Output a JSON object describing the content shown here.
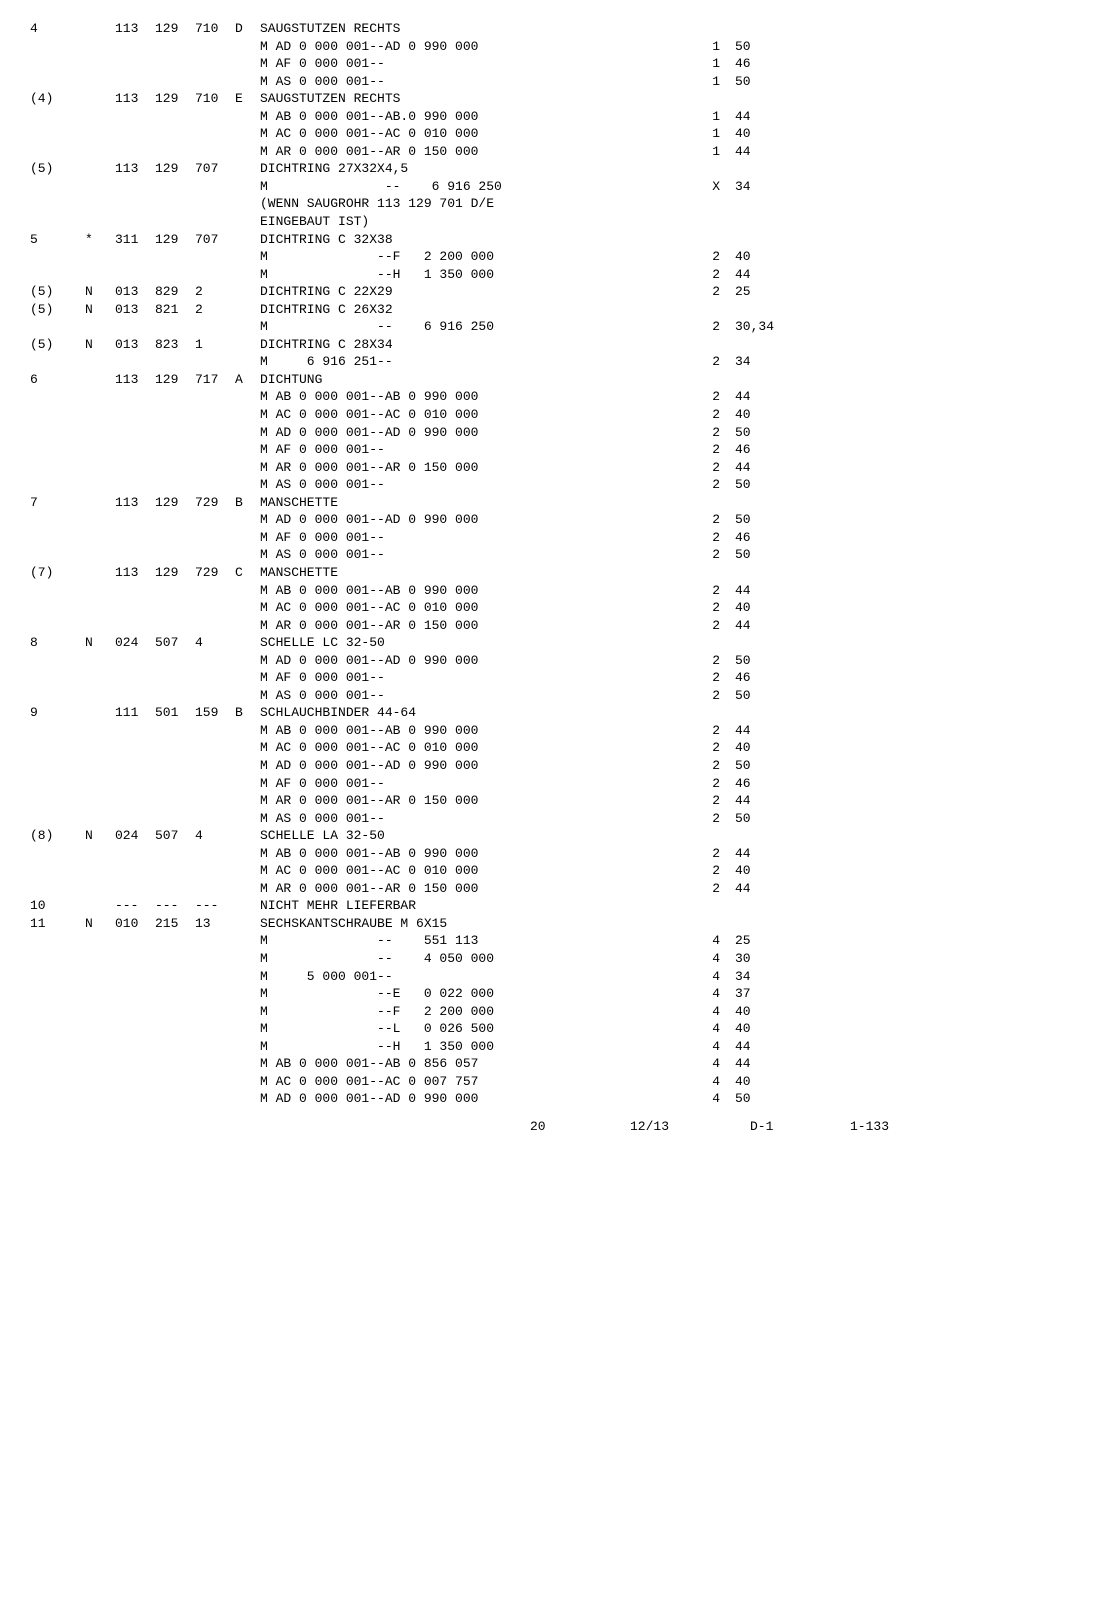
{
  "rows": [
    {
      "idx": "4",
      "mark": "",
      "p1": "113",
      "p2": "129",
      "p3": "710",
      "p4": "D",
      "desc": "SAUGSTUTZEN RECHTS",
      "q": "",
      "v": ""
    },
    {
      "idx": "",
      "mark": "",
      "p1": "",
      "p2": "",
      "p3": "",
      "p4": "",
      "desc": "M AD 0 000 001--AD 0 990 000",
      "q": "1",
      "v": "50"
    },
    {
      "idx": "",
      "mark": "",
      "p1": "",
      "p2": "",
      "p3": "",
      "p4": "",
      "desc": "M AF 0 000 001--",
      "q": "1",
      "v": "46"
    },
    {
      "idx": "",
      "mark": "",
      "p1": "",
      "p2": "",
      "p3": "",
      "p4": "",
      "desc": "M AS 0 000 001--",
      "q": "1",
      "v": "50"
    },
    {
      "idx": "(4)",
      "mark": "",
      "p1": "113",
      "p2": "129",
      "p3": "710",
      "p4": "E",
      "desc": "SAUGSTUTZEN RECHTS",
      "q": "",
      "v": ""
    },
    {
      "idx": "",
      "mark": "",
      "p1": "",
      "p2": "",
      "p3": "",
      "p4": "",
      "desc": "M AB 0 000 001--AB.0 990 000",
      "q": "1",
      "v": "44"
    },
    {
      "idx": "",
      "mark": "",
      "p1": "",
      "p2": "",
      "p3": "",
      "p4": "",
      "desc": "M AC 0 000 001--AC 0 010 000",
      "q": "1",
      "v": "40"
    },
    {
      "idx": "",
      "mark": "",
      "p1": "",
      "p2": "",
      "p3": "",
      "p4": "",
      "desc": "M AR 0 000 001--AR 0 150 000",
      "q": "1",
      "v": "44"
    },
    {
      "idx": "(5)",
      "mark": "",
      "p1": "113",
      "p2": "129",
      "p3": "707",
      "p4": "",
      "desc": "DICHTRING 27X32X4,5",
      "q": "",
      "v": ""
    },
    {
      "idx": "",
      "mark": "",
      "p1": "",
      "p2": "",
      "p3": "",
      "p4": "",
      "desc": "M               --    6 916 250",
      "q": "X",
      "v": "34"
    },
    {
      "idx": "",
      "mark": "",
      "p1": "",
      "p2": "",
      "p3": "",
      "p4": "",
      "desc": "(WENN SAUGROHR 113 129 701 D/E",
      "q": "",
      "v": ""
    },
    {
      "idx": "",
      "mark": "",
      "p1": "",
      "p2": "",
      "p3": "",
      "p4": "",
      "desc": "EINGEBAUT IST)",
      "q": "",
      "v": ""
    },
    {
      "idx": "5",
      "mark": "*",
      "p1": "311",
      "p2": "129",
      "p3": "707",
      "p4": "",
      "desc": "DICHTRING C 32X38",
      "q": "",
      "v": ""
    },
    {
      "idx": "",
      "mark": "",
      "p1": "",
      "p2": "",
      "p3": "",
      "p4": "",
      "desc": "M              --F   2 200 000",
      "q": "2",
      "v": "40"
    },
    {
      "idx": "",
      "mark": "",
      "p1": "",
      "p2": "",
      "p3": "",
      "p4": "",
      "desc": "M              --H   1 350 000",
      "q": "2",
      "v": "44"
    },
    {
      "idx": "(5)",
      "mark": "N",
      "p1": "013",
      "p2": "829",
      "p3": "2",
      "p4": "",
      "desc": "DICHTRING C 22X29",
      "q": "2",
      "v": "25"
    },
    {
      "idx": "(5)",
      "mark": "N",
      "p1": "013",
      "p2": "821",
      "p3": "2",
      "p4": "",
      "desc": "DICHTRING C 26X32",
      "q": "",
      "v": ""
    },
    {
      "idx": "",
      "mark": "",
      "p1": "",
      "p2": "",
      "p3": "",
      "p4": "",
      "desc": "M              --    6 916 250",
      "q": "2",
      "v": "30,34"
    },
    {
      "idx": "(5)",
      "mark": "N",
      "p1": "013",
      "p2": "823",
      "p3": "1",
      "p4": "",
      "desc": "DICHTRING C 28X34",
      "q": "",
      "v": ""
    },
    {
      "idx": "",
      "mark": "",
      "p1": "",
      "p2": "",
      "p3": "",
      "p4": "",
      "desc": "M     6 916 251--",
      "q": "2",
      "v": "34"
    },
    {
      "idx": "6",
      "mark": "",
      "p1": "113",
      "p2": "129",
      "p3": "717",
      "p4": "A",
      "desc": "DICHTUNG",
      "q": "",
      "v": ""
    },
    {
      "idx": "",
      "mark": "",
      "p1": "",
      "p2": "",
      "p3": "",
      "p4": "",
      "desc": "M AB 0 000 001--AB 0 990 000",
      "q": "2",
      "v": "44"
    },
    {
      "idx": "",
      "mark": "",
      "p1": "",
      "p2": "",
      "p3": "",
      "p4": "",
      "desc": "M AC 0 000 001--AC 0 010 000",
      "q": "2",
      "v": "40"
    },
    {
      "idx": "",
      "mark": "",
      "p1": "",
      "p2": "",
      "p3": "",
      "p4": "",
      "desc": "M AD 0 000 001--AD 0 990 000",
      "q": "2",
      "v": "50"
    },
    {
      "idx": "",
      "mark": "",
      "p1": "",
      "p2": "",
      "p3": "",
      "p4": "",
      "desc": "M AF 0 000 001--",
      "q": "2",
      "v": "46"
    },
    {
      "idx": "",
      "mark": "",
      "p1": "",
      "p2": "",
      "p3": "",
      "p4": "",
      "desc": "M AR 0 000 001--AR 0 150 000",
      "q": "2",
      "v": "44"
    },
    {
      "idx": "",
      "mark": "",
      "p1": "",
      "p2": "",
      "p3": "",
      "p4": "",
      "desc": "M AS 0 000 001--",
      "q": "2",
      "v": "50"
    },
    {
      "idx": "7",
      "mark": "",
      "p1": "113",
      "p2": "129",
      "p3": "729",
      "p4": "B",
      "desc": "MANSCHETTE",
      "q": "",
      "v": ""
    },
    {
      "idx": "",
      "mark": "",
      "p1": "",
      "p2": "",
      "p3": "",
      "p4": "",
      "desc": "M AD 0 000 001--AD 0 990 000",
      "q": "2",
      "v": "50"
    },
    {
      "idx": "",
      "mark": "",
      "p1": "",
      "p2": "",
      "p3": "",
      "p4": "",
      "desc": "M AF 0 000 001--",
      "q": "2",
      "v": "46"
    },
    {
      "idx": "",
      "mark": "",
      "p1": "",
      "p2": "",
      "p3": "",
      "p4": "",
      "desc": "M AS 0 000 001--",
      "q": "2",
      "v": "50"
    },
    {
      "idx": "(7)",
      "mark": "",
      "p1": "113",
      "p2": "129",
      "p3": "729",
      "p4": "C",
      "desc": "MANSCHETTE",
      "q": "",
      "v": ""
    },
    {
      "idx": "",
      "mark": "",
      "p1": "",
      "p2": "",
      "p3": "",
      "p4": "",
      "desc": "M AB 0 000 001--AB 0 990 000",
      "q": "2",
      "v": "44"
    },
    {
      "idx": "",
      "mark": "",
      "p1": "",
      "p2": "",
      "p3": "",
      "p4": "",
      "desc": "M AC 0 000 001--AC 0 010 000",
      "q": "2",
      "v": "40"
    },
    {
      "idx": "",
      "mark": "",
      "p1": "",
      "p2": "",
      "p3": "",
      "p4": "",
      "desc": "M AR 0 000 001--AR 0 150 000",
      "q": "2",
      "v": "44"
    },
    {
      "idx": "8",
      "mark": "N",
      "p1": "024",
      "p2": "507",
      "p3": "4",
      "p4": "",
      "desc": "SCHELLE LC 32-50",
      "q": "",
      "v": ""
    },
    {
      "idx": "",
      "mark": "",
      "p1": "",
      "p2": "",
      "p3": "",
      "p4": "",
      "desc": "M AD 0 000 001--AD 0 990 000",
      "q": "2",
      "v": "50"
    },
    {
      "idx": "",
      "mark": "",
      "p1": "",
      "p2": "",
      "p3": "",
      "p4": "",
      "desc": "M AF 0 000 001--",
      "q": "2",
      "v": "46"
    },
    {
      "idx": "",
      "mark": "",
      "p1": "",
      "p2": "",
      "p3": "",
      "p4": "",
      "desc": "M AS 0 000 001--",
      "q": "2",
      "v": "50"
    },
    {
      "idx": "9",
      "mark": "",
      "p1": "111",
      "p2": "501",
      "p3": "159",
      "p4": "B",
      "desc": "SCHLAUCHBINDER 44-64",
      "q": "",
      "v": ""
    },
    {
      "idx": "",
      "mark": "",
      "p1": "",
      "p2": "",
      "p3": "",
      "p4": "",
      "desc": "M AB 0 000 001--AB 0 990 000",
      "q": "2",
      "v": "44"
    },
    {
      "idx": "",
      "mark": "",
      "p1": "",
      "p2": "",
      "p3": "",
      "p4": "",
      "desc": "M AC 0 000 001--AC 0 010 000",
      "q": "2",
      "v": "40"
    },
    {
      "idx": "",
      "mark": "",
      "p1": "",
      "p2": "",
      "p3": "",
      "p4": "",
      "desc": "M AD 0 000 001--AD 0 990 000",
      "q": "2",
      "v": "50"
    },
    {
      "idx": "",
      "mark": "",
      "p1": "",
      "p2": "",
      "p3": "",
      "p4": "",
      "desc": "M AF 0 000 001--",
      "q": "2",
      "v": "46"
    },
    {
      "idx": "",
      "mark": "",
      "p1": "",
      "p2": "",
      "p3": "",
      "p4": "",
      "desc": "M AR 0 000 001--AR 0 150 000",
      "q": "2",
      "v": "44"
    },
    {
      "idx": "",
      "mark": "",
      "p1": "",
      "p2": "",
      "p3": "",
      "p4": "",
      "desc": "M AS 0 000 001--",
      "q": "2",
      "v": "50"
    },
    {
      "idx": "(8)",
      "mark": "N",
      "p1": "024",
      "p2": "507",
      "p3": "4",
      "p4": "",
      "desc": "SCHELLE LA 32-50",
      "q": "",
      "v": ""
    },
    {
      "idx": "",
      "mark": "",
      "p1": "",
      "p2": "",
      "p3": "",
      "p4": "",
      "desc": "M AB 0 000 001--AB 0 990 000",
      "q": "2",
      "v": "44"
    },
    {
      "idx": "",
      "mark": "",
      "p1": "",
      "p2": "",
      "p3": "",
      "p4": "",
      "desc": "M AC 0 000 001--AC 0 010 000",
      "q": "2",
      "v": "40"
    },
    {
      "idx": "",
      "mark": "",
      "p1": "",
      "p2": "",
      "p3": "",
      "p4": "",
      "desc": "M AR 0 000 001--AR 0 150 000",
      "q": "2",
      "v": "44"
    },
    {
      "idx": "10",
      "mark": "",
      "p1": "---",
      "p2": "---",
      "p3": "---",
      "p4": "",
      "desc": "NICHT MEHR LIEFERBAR",
      "q": "",
      "v": ""
    },
    {
      "idx": "11",
      "mark": "N",
      "p1": "010",
      "p2": "215",
      "p3": "13",
      "p4": "",
      "desc": "SECHSKANTSCHRAUBE M 6X15",
      "q": "",
      "v": ""
    },
    {
      "idx": "",
      "mark": "",
      "p1": "",
      "p2": "",
      "p3": "",
      "p4": "",
      "desc": "M              --    551 113",
      "q": "4",
      "v": "25"
    },
    {
      "idx": "",
      "mark": "",
      "p1": "",
      "p2": "",
      "p3": "",
      "p4": "",
      "desc": "M              --    4 050 000",
      "q": "4",
      "v": "30"
    },
    {
      "idx": "",
      "mark": "",
      "p1": "",
      "p2": "",
      "p3": "",
      "p4": "",
      "desc": "M     5 000 001--",
      "q": "4",
      "v": "34"
    },
    {
      "idx": "",
      "mark": "",
      "p1": "",
      "p2": "",
      "p3": "",
      "p4": "",
      "desc": "M              --E   0 022 000",
      "q": "4",
      "v": "37"
    },
    {
      "idx": "",
      "mark": "",
      "p1": "",
      "p2": "",
      "p3": "",
      "p4": "",
      "desc": "M              --F   2 200 000",
      "q": "4",
      "v": "40"
    },
    {
      "idx": "",
      "mark": "",
      "p1": "",
      "p2": "",
      "p3": "",
      "p4": "",
      "desc": "M              --L   0 026 500",
      "q": "4",
      "v": "40"
    },
    {
      "idx": "",
      "mark": "",
      "p1": "",
      "p2": "",
      "p3": "",
      "p4": "",
      "desc": "M              --H   1 350 000",
      "q": "4",
      "v": "44"
    },
    {
      "idx": "",
      "mark": "",
      "p1": "",
      "p2": "",
      "p3": "",
      "p4": "",
      "desc": "M AB 0 000 001--AB 0 856 057",
      "q": "4",
      "v": "44"
    },
    {
      "idx": "",
      "mark": "",
      "p1": "",
      "p2": "",
      "p3": "",
      "p4": "",
      "desc": "M AC 0 000 001--AC 0 007 757",
      "q": "4",
      "v": "40"
    },
    {
      "idx": "",
      "mark": "",
      "p1": "",
      "p2": "",
      "p3": "",
      "p4": "",
      "desc": "M AD 0 000 001--AD 0 990 000",
      "q": "4",
      "v": "50"
    }
  ],
  "footer": {
    "a": "20",
    "b": "12/13",
    "c": "D-1",
    "d": "1-133"
  }
}
